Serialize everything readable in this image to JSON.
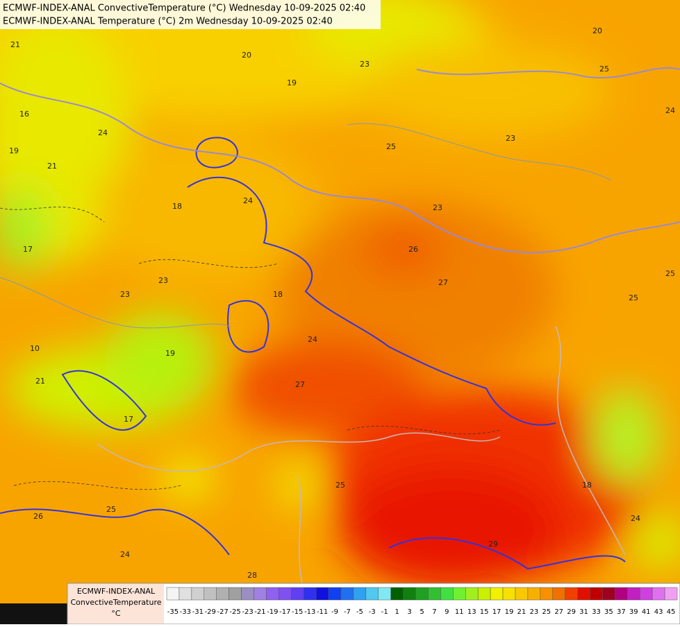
{
  "header": {
    "lines": [
      "ECMWF-INDEX-ANAL ConvectiveTemperature (°C) Wednesday 10-09-2025 02:40",
      "ECMWF-INDEX-ANAL Temperature (°C) 2m Wednesday 10-09-2025 02:40"
    ]
  },
  "map": {
    "contour_labels": [
      21,
      20,
      19,
      23,
      25,
      23,
      26,
      27,
      24,
      18,
      23,
      23,
      19,
      21,
      24,
      17,
      16,
      10,
      21,
      17,
      19,
      27,
      24,
      25,
      26,
      25,
      24,
      28,
      29,
      18,
      24,
      25,
      25,
      24,
      25,
      20,
      23,
      18
    ]
  },
  "legend": {
    "title_lines": [
      "ECMWF-INDEX-ANAL",
      "ConvectiveTemperature",
      "°C"
    ],
    "ticks": [
      -35,
      -33,
      -31,
      -29,
      -27,
      -25,
      -23,
      -21,
      -19,
      -17,
      -15,
      -13,
      -11,
      -9,
      -7,
      -5,
      -3,
      -1,
      1,
      3,
      5,
      7,
      9,
      11,
      13,
      15,
      17,
      19,
      21,
      23,
      25,
      27,
      29,
      31,
      33,
      35,
      37,
      39,
      41,
      43,
      45
    ],
    "colors": [
      "#f4f4f4",
      "#e0e0e0",
      "#d0d0d0",
      "#c0c0c0",
      "#b0b0b0",
      "#a0a0a0",
      "#9a8fc0",
      "#a080e0",
      "#9060f0",
      "#8050f0",
      "#6040f0",
      "#3030f0",
      "#1010e0",
      "#1040f0",
      "#2070f0",
      "#30a0f0",
      "#50c8f0",
      "#80e8f0",
      "#006000",
      "#108010",
      "#20a020",
      "#30c030",
      "#40e040",
      "#70f030",
      "#a0f020",
      "#c8f000",
      "#f0f000",
      "#f8e000",
      "#f8c800",
      "#f8b000",
      "#f89000",
      "#f07000",
      "#f04000",
      "#e01000",
      "#c00000",
      "#a00020",
      "#b00080",
      "#c020c0",
      "#d040e0",
      "#e070f0",
      "#f0a0f0"
    ]
  }
}
